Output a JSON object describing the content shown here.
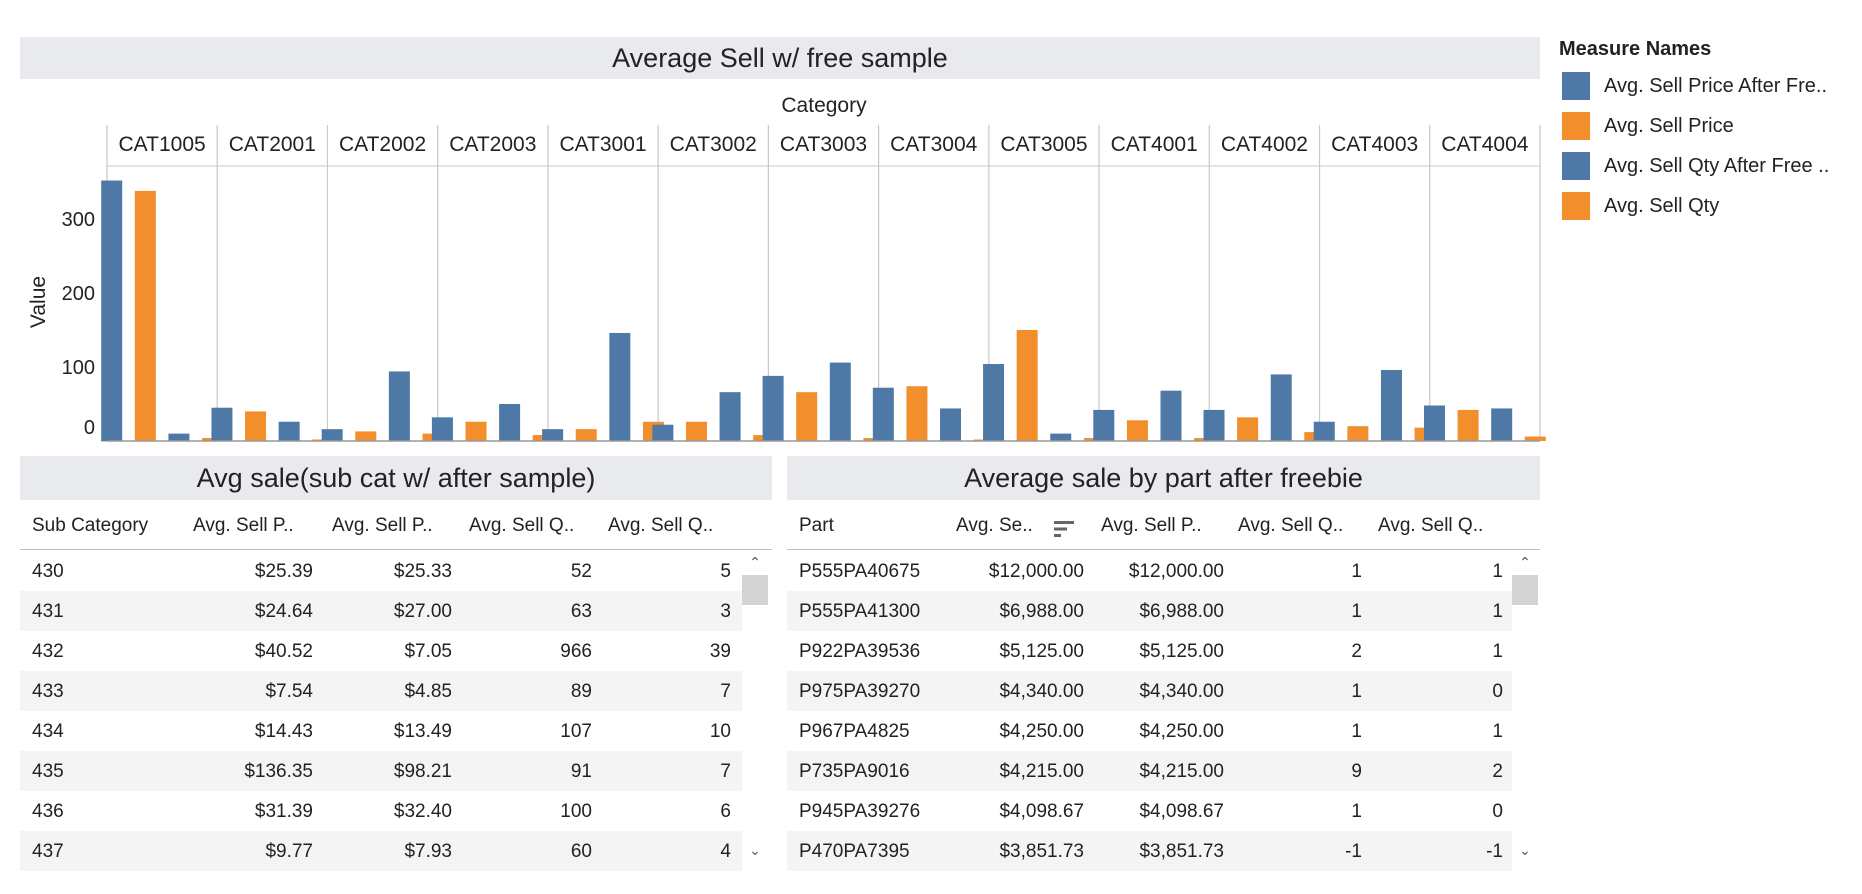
{
  "top_chart_title": "Average Sell w/ free sample",
  "chart_data": {
    "type": "bar",
    "column_header": "Category",
    "ylabel": "Value",
    "ylim": [
      0,
      350
    ],
    "yticks": [
      0,
      100,
      200,
      300
    ],
    "categories": [
      "CAT1005",
      "CAT2001",
      "CAT2002",
      "CAT2003",
      "CAT3001",
      "CAT3002",
      "CAT3003",
      "CAT3004",
      "CAT3005",
      "CAT4001",
      "CAT4002",
      "CAT4003",
      "CAT4004"
    ],
    "series": [
      {
        "name": "Avg. Sell Price After Fre..",
        "color": "#4e79a7",
        "values": [
          352,
          45,
          16,
          32,
          16,
          22,
          88,
          72,
          104,
          42,
          42,
          26,
          48
        ]
      },
      {
        "name": "Avg. Sell Price",
        "color": "#f28e2b",
        "values": [
          338,
          40,
          13,
          26,
          16,
          26,
          66,
          74,
          150,
          28,
          32,
          20,
          42
        ]
      },
      {
        "name": "Avg. Sell Qty After Free ..",
        "color": "#4e79a7",
        "values": [
          10,
          26,
          94,
          50,
          146,
          66,
          106,
          44,
          10,
          68,
          90,
          96,
          44
        ]
      },
      {
        "name": "Avg. Sell Qty",
        "color": "#f28e2b",
        "values": [
          4,
          2,
          10,
          8,
          26,
          8,
          4,
          2,
          4,
          4,
          12,
          18,
          6
        ]
      }
    ]
  },
  "legend": {
    "title": "Measure Names",
    "items": [
      {
        "label": "Avg. Sell Price After Fre..",
        "color": "#4e79a7"
      },
      {
        "label": "Avg. Sell Price",
        "color": "#f28e2b"
      },
      {
        "label": "Avg. Sell Qty After Free ..",
        "color": "#4e79a7"
      },
      {
        "label": "Avg. Sell Qty",
        "color": "#f28e2b"
      }
    ]
  },
  "left_table": {
    "title": "Avg sale(sub cat w/ after sample)",
    "headers": [
      "Sub Category",
      "Avg. Sell P..",
      "Avg. Sell P..",
      "Avg. Sell Q..",
      "Avg. Sell Q.."
    ],
    "rows": [
      [
        "430",
        "$25.39",
        "$25.33",
        "52",
        "5"
      ],
      [
        "431",
        "$24.64",
        "$27.00",
        "63",
        "3"
      ],
      [
        "432",
        "$40.52",
        "$7.05",
        "966",
        "39"
      ],
      [
        "433",
        "$7.54",
        "$4.85",
        "89",
        "7"
      ],
      [
        "434",
        "$14.43",
        "$13.49",
        "107",
        "10"
      ],
      [
        "435",
        "$136.35",
        "$98.21",
        "91",
        "7"
      ],
      [
        "436",
        "$31.39",
        "$32.40",
        "100",
        "6"
      ],
      [
        "437",
        "$9.77",
        "$7.93",
        "60",
        "4"
      ]
    ]
  },
  "right_table": {
    "title": "Average sale by part after freebie",
    "headers": [
      "Part",
      "Avg. Se..",
      "Avg. Sell P..",
      "Avg. Sell Q..",
      "Avg. Sell Q.."
    ],
    "rows": [
      [
        "P555PA40675",
        "$12,000.00",
        "$12,000.00",
        "1",
        "1"
      ],
      [
        "P555PA41300",
        "$6,988.00",
        "$6,988.00",
        "1",
        "1"
      ],
      [
        "P922PA39536",
        "$5,125.00",
        "$5,125.00",
        "2",
        "1"
      ],
      [
        "P975PA39270",
        "$4,340.00",
        "$4,340.00",
        "1",
        "0"
      ],
      [
        "P967PA4825",
        "$4,250.00",
        "$4,250.00",
        "1",
        "1"
      ],
      [
        "P735PA9016",
        "$4,215.00",
        "$4,215.00",
        "9",
        "2"
      ],
      [
        "P945PA39276",
        "$4,098.67",
        "$4,098.67",
        "1",
        "0"
      ],
      [
        "P470PA7395",
        "$3,851.73",
        "$3,851.73",
        "-1",
        "-1"
      ]
    ]
  }
}
